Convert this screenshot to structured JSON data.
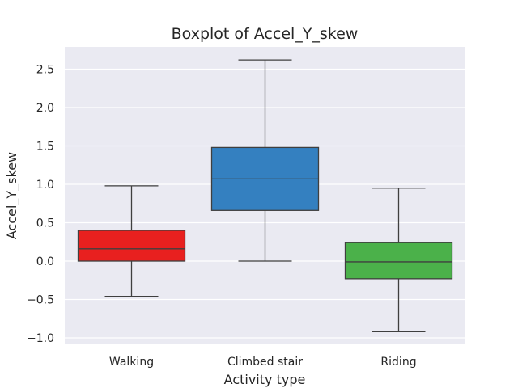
{
  "chart_data": {
    "type": "boxplot",
    "title": "Boxplot of Accel_Y_skew",
    "xlabel": "Activity type",
    "ylabel": "Accel_Y_skew",
    "ylim": [
      -1.08,
      2.8
    ],
    "yticks": [
      -1.0,
      -0.5,
      0.0,
      0.5,
      1.0,
      1.5,
      2.0,
      2.5
    ],
    "ytick_labels": [
      "−1.0",
      "−0.5",
      "0.0",
      "0.5",
      "1.0",
      "1.5",
      "2.0",
      "2.5"
    ],
    "grid": true,
    "categories": [
      "Walking",
      "Climbed stair",
      "Riding"
    ],
    "boxes": [
      {
        "name": "Walking",
        "whisker_low": -0.46,
        "q1": 0.0,
        "median": 0.16,
        "q3": 0.4,
        "whisker_high": 0.98,
        "color": "#e8201f"
      },
      {
        "name": "Climbed stair",
        "whisker_low": 0.0,
        "q1": 0.66,
        "median": 1.07,
        "q3": 1.48,
        "whisker_high": 2.62,
        "color": "#3480c0"
      },
      {
        "name": "Riding",
        "whisker_low": -0.92,
        "q1": -0.23,
        "median": -0.01,
        "q3": 0.24,
        "whisker_high": 0.95,
        "color": "#4bb14a"
      }
    ],
    "colors": {
      "background": "#eaeaf2",
      "grid": "#ffffff",
      "line": "#3f3f3f"
    }
  }
}
